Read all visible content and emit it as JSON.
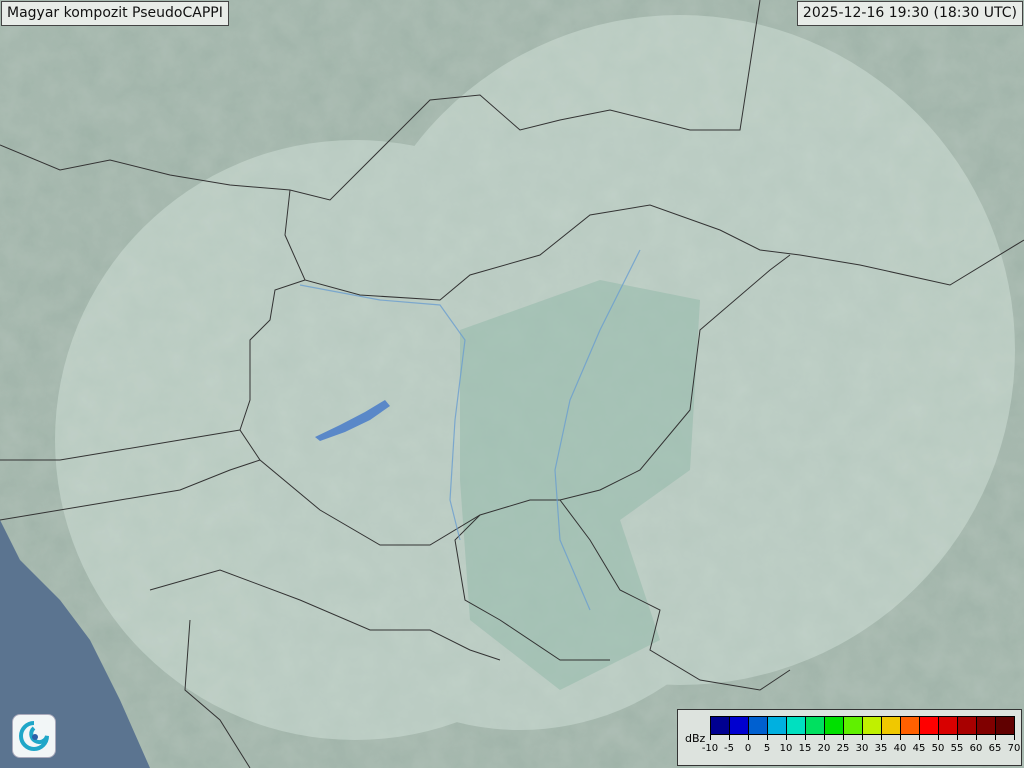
{
  "header": {
    "title": "Magyar kompozit  PseudoCAPPI",
    "timestamp": "2025-12-16 19:30 (18:30 UTC)"
  },
  "legend": {
    "unit": "dBz",
    "ticks": [
      "-10",
      "-5",
      "0",
      "5",
      "10",
      "15",
      "20",
      "25",
      "30",
      "35",
      "40",
      "45",
      "50",
      "55",
      "60",
      "65",
      "70"
    ],
    "colors": [
      "#000090",
      "#0000d0",
      "#0060d0",
      "#00b0e0",
      "#00e0c0",
      "#00e060",
      "#00e000",
      "#60f000",
      "#c0f000",
      "#f0c800",
      "#ff6000",
      "#ff0000",
      "#d80000",
      "#a80000",
      "#800000",
      "#600000"
    ]
  },
  "map": {
    "land_color": "#9fb3a8",
    "sea_color": "#5b7490",
    "radar_coverage_color": "#c9ddd3",
    "border_color": "#333333",
    "river_color": "#6a9ed0"
  },
  "logo": {
    "icon": "weather-service-swirl-icon"
  }
}
